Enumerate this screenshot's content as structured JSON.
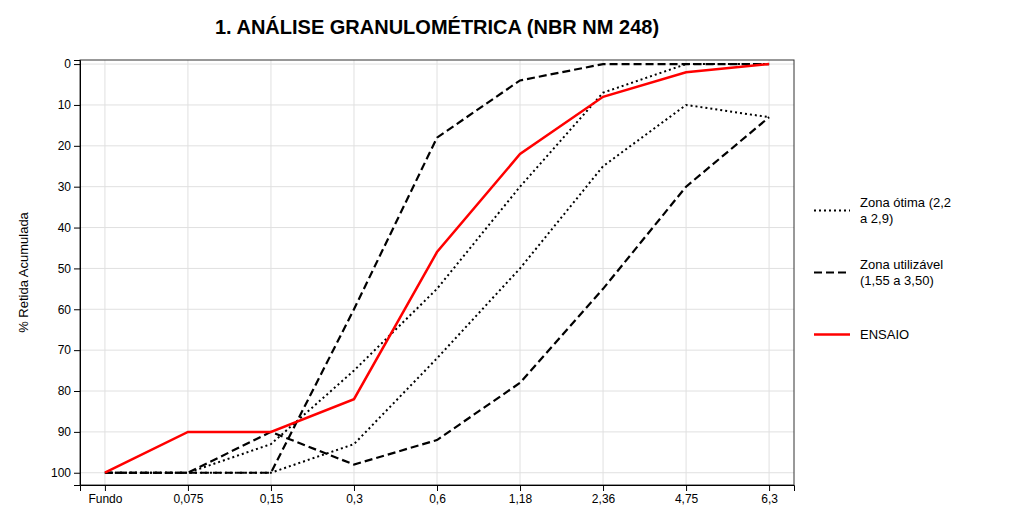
{
  "chart_data": {
    "type": "line",
    "title": "1. ANÁLISE GRANULOMÉTRICA (NBR NM 248)",
    "y_label": "% Retida Acumulada",
    "categories": [
      "Fundo",
      "0,075",
      "0,15",
      "0,3",
      "0,6",
      "1,18",
      "2,36",
      "4,75",
      "6,3"
    ],
    "series": [
      {
        "name": "Zona ótima (2,2\na 2,9)",
        "color": "#000000",
        "line_style": "dotted",
        "values": [
          100,
          100,
          93,
          75,
          55,
          30,
          7,
          0,
          0
        ]
      },
      {
        "name": "Zona ótima (2,2\na 2,9)",
        "color": "#000000",
        "line_style": "dotted",
        "values": [
          100,
          100,
          100,
          93,
          72,
          50,
          25,
          10,
          13
        ]
      },
      {
        "name": "Zona utilizável\n(1,55 a 3,50)",
        "color": "#000000",
        "line_style": "dashed",
        "values": [
          100,
          100,
          100,
          60,
          18,
          4,
          0,
          0,
          0
        ]
      },
      {
        "name": "Zona utilizável\n(1,55 a 3,50)",
        "color": "#000000",
        "line_style": "dashed",
        "values": [
          100,
          100,
          90,
          98,
          92,
          78,
          55,
          30,
          13
        ]
      },
      {
        "name": "ENSAIO",
        "color": "#ff0000",
        "line_style": "solid",
        "values": [
          100,
          90,
          90,
          82,
          46,
          22,
          8,
          2,
          0
        ]
      }
    ],
    "ylim": [
      103,
      -1
    ],
    "yticks": [
      0,
      10,
      20,
      30,
      40,
      50,
      60,
      70,
      80,
      90,
      100
    ],
    "grid": true,
    "legend": "right"
  }
}
